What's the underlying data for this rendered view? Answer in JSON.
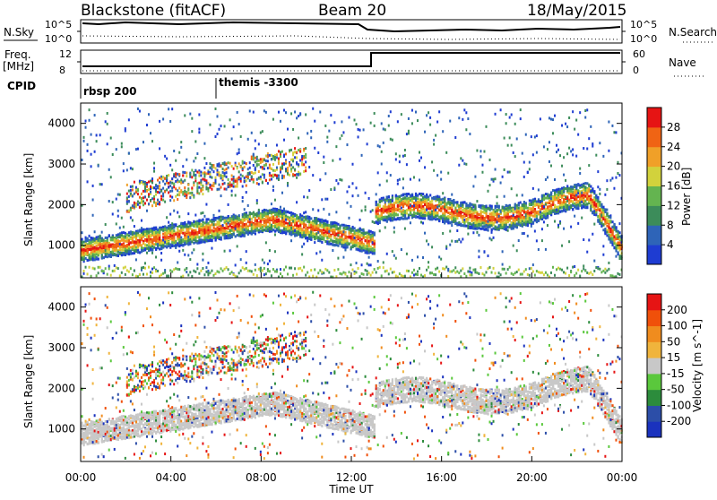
{
  "header": {
    "title": "Blackstone (fitACF)",
    "beam": "Beam 20",
    "date": "18/May/2015"
  },
  "top_panels": {
    "nsky_label": "N.Sky",
    "nsearch_label": "N.Search",
    "noise_ticks": [
      "10^5",
      "10^0"
    ],
    "freq_label_1": "Freq.",
    "freq_label_2": "[MHz]",
    "freq_ticks": [
      "12",
      "8"
    ],
    "nave_label": "Nave",
    "nave_ticks": [
      "60",
      "0"
    ],
    "cpid_label": "CPID",
    "cpid_segments": [
      "rbsp 200",
      "themis -3300"
    ]
  },
  "chart_data": [
    {
      "type": "heatmap",
      "panel": "power",
      "xlabel": "",
      "ylabel": "Slant Range [km]",
      "xlim": [
        0,
        24
      ],
      "ylim": [
        200,
        4500
      ],
      "yticks": [
        1000,
        2000,
        3000,
        4000
      ],
      "colorbar": {
        "label": "Power [dB]",
        "ticks": [
          4,
          8,
          12,
          16,
          20,
          24,
          28
        ],
        "colors": [
          "#1e3cd2",
          "#2e64b8",
          "#3c8c5a",
          "#64b450",
          "#d2d23c",
          "#f0a028",
          "#f06414",
          "#e61414"
        ]
      }
    },
    {
      "type": "heatmap",
      "panel": "velocity",
      "xlabel": "Time UT",
      "ylabel": "Slant Range [km]",
      "xlim": [
        0,
        24
      ],
      "ylim": [
        200,
        4500
      ],
      "xticks": [
        "00:00",
        "04:00",
        "08:00",
        "12:00",
        "16:00",
        "20:00",
        "00:00"
      ],
      "yticks": [
        1000,
        2000,
        3000,
        4000
      ],
      "colorbar": {
        "label": "Velocity [m s^-1]",
        "ticks": [
          200,
          100,
          50,
          15,
          -15,
          -50,
          -100,
          -200
        ],
        "colors": [
          "#1a32be",
          "#2c4ea8",
          "#2c8c3c",
          "#5ac83c",
          "#c8c8c8",
          "#f0b43c",
          "#f08c1e",
          "#f0500a",
          "#e61414"
        ]
      }
    }
  ]
}
